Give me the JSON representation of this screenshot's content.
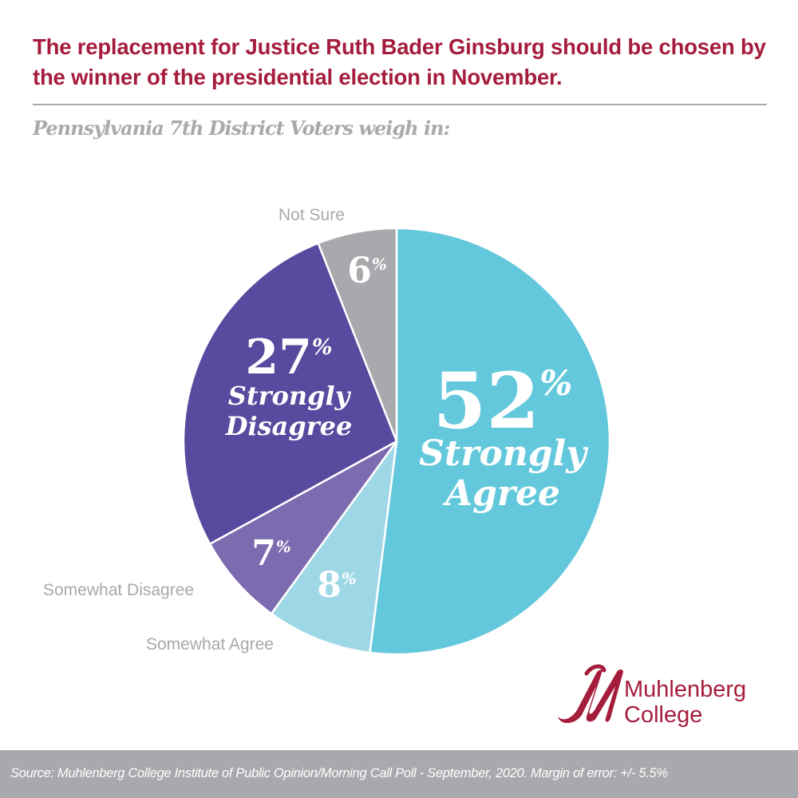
{
  "header": {
    "title": "The replacement for Justice Ruth Bader Ginsburg should be chosen by the winner of the presidential election in November.",
    "subtitle": "Pennsylvania 7th District Voters weigh in:"
  },
  "chart_data": {
    "type": "pie",
    "title": "The replacement for Justice Ruth Bader Ginsburg should be chosen by the winner of the presidential election in November.",
    "subtitle": "Pennsylvania 7th District Voters weigh in:",
    "categories": [
      "Strongly Agree",
      "Somewhat Agree",
      "Somewhat Disagree",
      "Strongly Disagree",
      "Not Sure"
    ],
    "values": [
      52,
      8,
      7,
      27,
      6
    ],
    "unit": "%",
    "colors": [
      "#64c8dc",
      "#9ed8e6",
      "#7d6bb0",
      "#584a9e",
      "#a7a9ac"
    ],
    "start_angle": "12 o'clock, clockwise",
    "legend": "none (direct labels)"
  },
  "labels": {
    "strongly_agree": {
      "value": "52",
      "pct": "%",
      "line1": "Strongly",
      "line2": "Agree"
    },
    "somewhat_agree": {
      "value": "8",
      "pct": "%",
      "outer": "Somewhat Agree"
    },
    "somewhat_disagree": {
      "value": "7",
      "pct": "%",
      "outer": "Somewhat Disagree"
    },
    "strongly_disagree": {
      "value": "27",
      "pct": "%",
      "line1": "Strongly",
      "line2": "Disagree"
    },
    "not_sure": {
      "value": "6",
      "pct": "%",
      "outer": "Not Sure"
    }
  },
  "logo": {
    "line1": "Muhlenberg",
    "line2": "College",
    "color": "#a51d3c"
  },
  "footer": {
    "source": "Source: Muhlenberg College Institute of Public Opinion/Morning Call Poll - September, 2020. Margin of error: +/- 5.5%"
  }
}
